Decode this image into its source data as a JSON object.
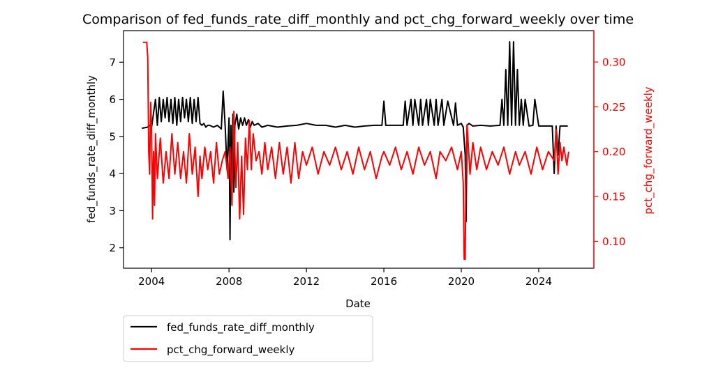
{
  "chart_data": {
    "type": "line",
    "title": "Comparison of fed_funds_rate_diff_monthly and pct_chg_forward_weekly over time",
    "xlabel": "Date",
    "ylabel_left": "fed_funds_rate_diff_monthly",
    "ylabel_right": "pct_chg_forward_weekly",
    "xlim": [
      2002.55,
      2026.85
    ],
    "ylim_left": [
      1.45,
      7.85
    ],
    "ylim_right": [
      0.07,
      0.335
    ],
    "x_ticks": [
      2004,
      2008,
      2012,
      2016,
      2020,
      2024
    ],
    "x_tick_labels": [
      "2004",
      "2008",
      "2012",
      "2016",
      "2020",
      "2024"
    ],
    "y_ticks_left": [
      2,
      3,
      4,
      5,
      6,
      7
    ],
    "y_tick_labels_left": [
      "2",
      "3",
      "4",
      "5",
      "6",
      "7"
    ],
    "y_ticks_right": [
      0.1,
      0.15,
      0.2,
      0.25,
      0.3
    ],
    "y_tick_labels_right": [
      "0.10",
      "0.15",
      "0.20",
      "0.25",
      "0.30"
    ],
    "legend_position": "below-left",
    "grid": false,
    "series": [
      {
        "name": "fed_funds_rate_diff_monthly",
        "axis": "left",
        "color": "#000000",
        "x": [
          2003.5,
          2003.8,
          2003.9,
          2004.0,
          2004.2,
          2004.3,
          2004.4,
          2004.5,
          2004.6,
          2004.7,
          2004.8,
          2004.9,
          2005.0,
          2005.1,
          2005.2,
          2005.3,
          2005.4,
          2005.5,
          2005.6,
          2005.7,
          2005.8,
          2005.9,
          2006.0,
          2006.1,
          2006.2,
          2006.3,
          2006.4,
          2006.5,
          2006.6,
          2006.7,
          2006.8,
          2006.9,
          2007.0,
          2007.2,
          2007.4,
          2007.6,
          2007.7,
          2007.8,
          2007.9,
          2008.0,
          2008.05,
          2008.1,
          2008.15,
          2008.2,
          2008.25,
          2008.3,
          2008.4,
          2008.5,
          2008.6,
          2008.7,
          2008.8,
          2008.9,
          2009.0,
          2009.1,
          2009.2,
          2009.3,
          2009.5,
          2009.7,
          2010.0,
          2010.5,
          2011.0,
          2011.5,
          2012.0,
          2012.5,
          2013.0,
          2013.5,
          2014.0,
          2014.5,
          2015.0,
          2015.5,
          2015.9,
          2016.0,
          2016.1,
          2016.5,
          2017.0,
          2017.1,
          2017.2,
          2017.4,
          2017.5,
          2017.6,
          2017.8,
          2017.9,
          2018.0,
          2018.2,
          2018.3,
          2018.4,
          2018.6,
          2018.7,
          2018.8,
          2019.0,
          2019.1,
          2019.3,
          2019.6,
          2019.7,
          2019.8,
          2020.0,
          2020.1,
          2020.2,
          2020.25,
          2020.3,
          2020.4,
          2020.6,
          2021.0,
          2021.5,
          2022.0,
          2022.1,
          2022.2,
          2022.3,
          2022.4,
          2022.5,
          2022.6,
          2022.7,
          2022.8,
          2022.9,
          2023.0,
          2023.1,
          2023.2,
          2023.3,
          2023.5,
          2023.7,
          2023.8,
          2024.0,
          2024.5,
          2024.7,
          2024.8,
          2024.9,
          2025.0,
          2025.1,
          2025.3,
          2025.5
        ],
        "y": [
          5.22,
          5.25,
          5.3,
          5.25,
          6.0,
          5.3,
          6.05,
          5.4,
          6.0,
          5.5,
          6.05,
          5.4,
          6.0,
          5.35,
          6.05,
          5.3,
          6.0,
          5.4,
          6.05,
          5.5,
          6.0,
          5.4,
          6.05,
          5.35,
          6.0,
          5.4,
          6.05,
          5.35,
          5.3,
          5.35,
          5.25,
          5.3,
          5.3,
          5.25,
          5.3,
          5.2,
          6.22,
          5.3,
          4.1,
          5.5,
          2.22,
          5.3,
          3.4,
          5.6,
          3.5,
          5.3,
          5.6,
          5.2,
          5.5,
          5.3,
          5.5,
          5.3,
          5.45,
          5.25,
          5.4,
          5.3,
          5.35,
          5.25,
          5.3,
          5.25,
          5.28,
          5.3,
          5.35,
          5.3,
          5.3,
          5.25,
          5.3,
          5.25,
          5.28,
          5.3,
          5.3,
          5.95,
          5.3,
          5.3,
          5.3,
          5.95,
          5.3,
          6.0,
          5.3,
          6.0,
          5.3,
          6.0,
          5.3,
          6.0,
          5.3,
          6.0,
          5.3,
          6.0,
          5.3,
          6.0,
          5.3,
          5.95,
          5.3,
          5.9,
          5.3,
          5.35,
          5.25,
          4.5,
          2.7,
          5.3,
          5.35,
          5.28,
          5.3,
          5.28,
          5.3,
          6.0,
          5.3,
          6.8,
          5.3,
          7.55,
          5.3,
          7.55,
          5.3,
          6.8,
          5.3,
          6.0,
          5.3,
          6.0,
          5.28,
          5.3,
          6.0,
          5.28,
          5.28,
          5.28,
          4.0,
          5.28,
          4.5,
          5.28,
          5.28,
          5.28
        ]
      },
      {
        "name": "pct_chg_forward_weekly",
        "axis": "right",
        "color": "#ff0000",
        "x": [
          2003.55,
          2003.75,
          2003.8,
          2003.85,
          2003.9,
          2003.95,
          2004.0,
          2004.05,
          2004.1,
          2004.15,
          2004.2,
          2004.3,
          2004.45,
          2004.6,
          2004.75,
          2004.9,
          2005.05,
          2005.2,
          2005.35,
          2005.5,
          2005.65,
          2005.8,
          2005.95,
          2006.1,
          2006.25,
          2006.4,
          2006.5,
          2006.6,
          2006.75,
          2006.9,
          2007.05,
          2007.2,
          2007.35,
          2007.5,
          2007.65,
          2007.8,
          2007.95,
          2008.05,
          2008.15,
          2008.25,
          2008.35,
          2008.45,
          2008.55,
          2008.65,
          2008.75,
          2008.85,
          2008.95,
          2009.05,
          2009.15,
          2009.25,
          2009.4,
          2009.55,
          2009.7,
          2009.85,
          2010.0,
          2010.2,
          2010.4,
          2010.6,
          2010.8,
          2011.0,
          2011.2,
          2011.4,
          2011.6,
          2011.8,
          2012.0,
          2012.3,
          2012.6,
          2012.9,
          2013.2,
          2013.5,
          2013.8,
          2014.1,
          2014.4,
          2014.7,
          2015.0,
          2015.3,
          2015.6,
          2015.9,
          2016.0,
          2016.3,
          2016.6,
          2016.9,
          2017.2,
          2017.5,
          2017.8,
          2018.1,
          2018.4,
          2018.7,
          2018.9,
          2019.2,
          2019.5,
          2019.8,
          2020.0,
          2020.1,
          2020.15,
          2020.2,
          2020.25,
          2020.3,
          2020.45,
          2020.6,
          2020.8,
          2021.0,
          2021.3,
          2021.6,
          2021.9,
          2022.2,
          2022.5,
          2022.8,
          2023.0,
          2023.3,
          2023.6,
          2023.9,
          2024.2,
          2024.5,
          2024.8,
          2024.9,
          2025.0,
          2025.1,
          2025.2,
          2025.3,
          2025.45,
          2025.55
        ],
        "y": [
          0.322,
          0.322,
          0.305,
          0.2,
          0.175,
          0.255,
          0.225,
          0.125,
          0.2,
          0.14,
          0.22,
          0.17,
          0.215,
          0.165,
          0.2,
          0.17,
          0.22,
          0.175,
          0.21,
          0.17,
          0.2,
          0.165,
          0.22,
          0.175,
          0.205,
          0.15,
          0.195,
          0.17,
          0.205,
          0.18,
          0.2,
          0.165,
          0.21,
          0.175,
          0.19,
          0.2,
          0.17,
          0.205,
          0.14,
          0.245,
          0.16,
          0.21,
          0.125,
          0.195,
          0.13,
          0.215,
          0.18,
          0.235,
          0.18,
          0.22,
          0.19,
          0.2,
          0.175,
          0.21,
          0.18,
          0.205,
          0.17,
          0.21,
          0.175,
          0.205,
          0.165,
          0.21,
          0.17,
          0.2,
          0.185,
          0.205,
          0.175,
          0.2,
          0.185,
          0.205,
          0.18,
          0.2,
          0.175,
          0.205,
          0.18,
          0.2,
          0.17,
          0.195,
          0.2,
          0.185,
          0.205,
          0.18,
          0.2,
          0.175,
          0.205,
          0.185,
          0.2,
          0.17,
          0.2,
          0.19,
          0.205,
          0.18,
          0.2,
          0.165,
          0.08,
          0.08,
          0.19,
          0.23,
          0.175,
          0.21,
          0.18,
          0.205,
          0.18,
          0.2,
          0.185,
          0.205,
          0.175,
          0.2,
          0.185,
          0.2,
          0.175,
          0.205,
          0.18,
          0.2,
          0.19,
          0.225,
          0.175,
          0.21,
          0.19,
          0.205,
          0.185,
          0.2
        ]
      }
    ]
  }
}
